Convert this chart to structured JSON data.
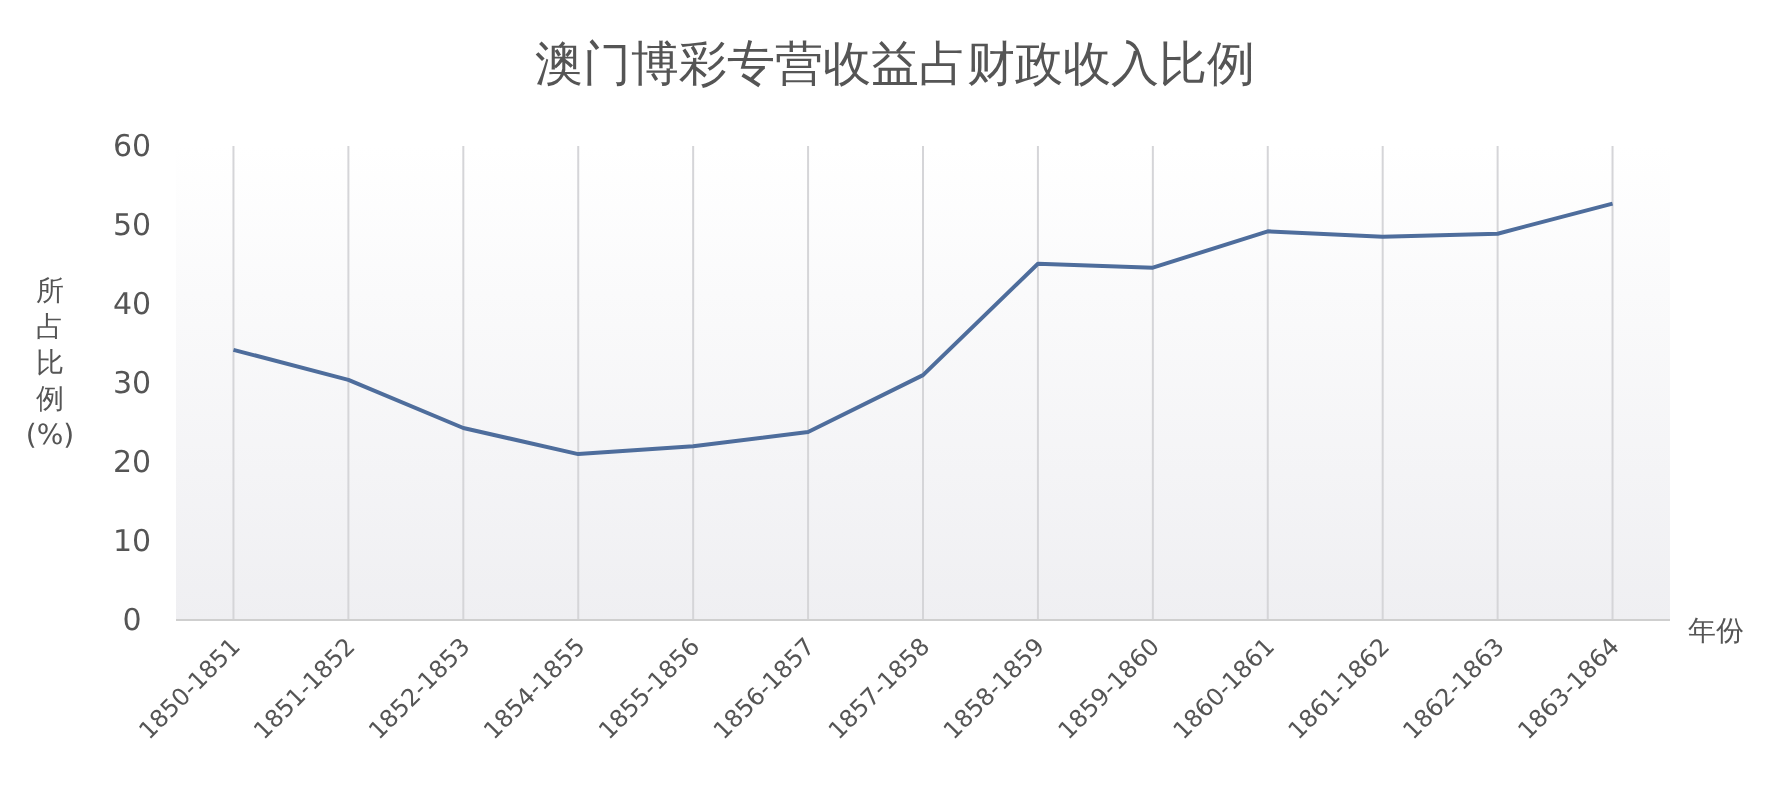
{
  "chart_data": {
    "type": "line",
    "title": "澳门博彩专营收益占财政收入比例",
    "xlabel": "年份",
    "ylabel": "所占比例(%)",
    "categories": [
      "1850-1851",
      "1851-1852",
      "1852-1853",
      "1854-1855",
      "1855-1856",
      "1856-1857",
      "1857-1858",
      "1858-1859",
      "1859-1860",
      "1860-1861",
      "1861-1862",
      "1862-1863",
      "1863-1864"
    ],
    "series": [
      {
        "color": "#4e6d9c",
        "values": [
          34.2,
          30.4,
          24.3,
          21.0,
          22.0,
          23.8,
          31.0,
          45.1,
          44.6,
          49.2,
          48.5,
          48.9,
          52.7
        ]
      }
    ],
    "ylim": [
      0,
      60
    ],
    "yticks": [
      0,
      10,
      20,
      30,
      40,
      50,
      60
    ],
    "grid": "x",
    "marker": "none",
    "line_style": "solid"
  }
}
